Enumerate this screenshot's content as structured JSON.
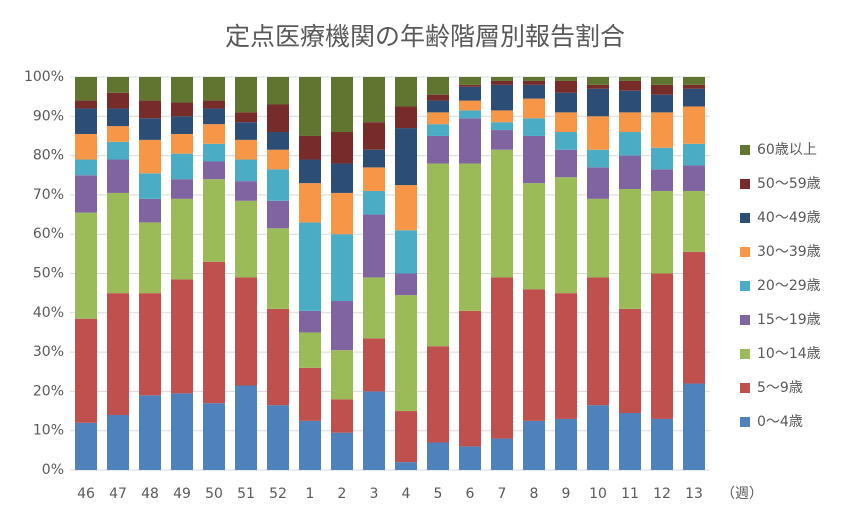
{
  "chart_data": {
    "type": "stacked_bar",
    "title": "定点医療機関の年齢階層別報告割合",
    "x_label": "（週）",
    "categories": [
      "46",
      "47",
      "48",
      "49",
      "50",
      "51",
      "52",
      "1",
      "2",
      "3",
      "4",
      "5",
      "6",
      "7",
      "8",
      "9",
      "10",
      "11",
      "12",
      "13"
    ],
    "series": [
      {
        "name": "0〜4歳",
        "color": "#4f81bd",
        "values": [
          12,
          14,
          19,
          19.5,
          17,
          21.5,
          16.5,
          12.5,
          9.5,
          20,
          2,
          7,
          6,
          8,
          12.5,
          13,
          16.5,
          14.5,
          13,
          22
        ]
      },
      {
        "name": "5〜9歳",
        "color": "#c0504d",
        "values": [
          26.5,
          31,
          26,
          29,
          36,
          27.5,
          24.5,
          13.5,
          8.5,
          13.5,
          13,
          24.5,
          34.5,
          41,
          33.5,
          32,
          32.5,
          26.5,
          37,
          33.5
        ]
      },
      {
        "name": "10〜14歳",
        "color": "#9bbb59",
        "values": [
          27,
          25.5,
          18,
          20.5,
          21,
          19.5,
          20.5,
          9,
          12.5,
          15.5,
          29.5,
          46.5,
          37.5,
          32.5,
          27,
          29.5,
          20,
          30.5,
          21,
          15.5
        ]
      },
      {
        "name": "15〜19歳",
        "color": "#8064a2",
        "values": [
          9.5,
          8.5,
          6,
          5,
          4.5,
          5,
          7,
          5.5,
          12.5,
          16,
          5.5,
          7,
          11.5,
          5,
          12,
          7,
          8,
          8.5,
          5.5,
          6.5
        ]
      },
      {
        "name": "20〜29歳",
        "color": "#4bacc6",
        "values": [
          4,
          4.5,
          6.5,
          6.5,
          4.5,
          5.5,
          8,
          22.5,
          17,
          6,
          11,
          3,
          2,
          2,
          4.5,
          4.5,
          4.5,
          6,
          5.5,
          5.5
        ]
      },
      {
        "name": "30〜39歳",
        "color": "#f79646",
        "values": [
          6.5,
          4,
          8.5,
          5,
          5,
          5,
          5,
          10,
          10.5,
          6,
          11.5,
          3,
          2.5,
          3,
          5,
          5,
          8.5,
          5,
          9,
          9.5
        ]
      },
      {
        "name": "40〜49歳",
        "color": "#2c4d75",
        "values": [
          6.5,
          4.5,
          5.5,
          4.5,
          4,
          4.5,
          4.5,
          6,
          7.5,
          4.5,
          14.5,
          3,
          3.5,
          6.5,
          3.5,
          5,
          7,
          5.5,
          4.5,
          4.5
        ]
      },
      {
        "name": "50〜59歳",
        "color": "#772c2a",
        "values": [
          2,
          4,
          4.5,
          3.5,
          2,
          2.5,
          7,
          6,
          8,
          7,
          5.5,
          1.5,
          0.5,
          1,
          1,
          3,
          1,
          2.5,
          2.5,
          1
        ]
      },
      {
        "name": "60歳以上",
        "color": "#5f7530",
        "values": [
          6,
          4,
          6,
          6.5,
          6,
          9,
          7,
          15,
          14,
          11.5,
          7.5,
          4.5,
          2,
          1,
          1,
          1,
          2,
          1,
          2,
          2
        ]
      }
    ],
    "ylim": [
      0,
      100
    ],
    "yticks": [
      {
        "value": 0,
        "label": "0%"
      },
      {
        "value": 10,
        "label": "10%"
      },
      {
        "value": 20,
        "label": "20%"
      },
      {
        "value": 30,
        "label": "30%"
      },
      {
        "value": 40,
        "label": "40%"
      },
      {
        "value": 50,
        "label": "50%"
      },
      {
        "value": 60,
        "label": "60%"
      },
      {
        "value": 70,
        "label": "70%"
      },
      {
        "value": 80,
        "label": "80%"
      },
      {
        "value": 90,
        "label": "90%"
      },
      {
        "value": 100,
        "label": "100%"
      }
    ],
    "grid": true,
    "legend": "right"
  }
}
